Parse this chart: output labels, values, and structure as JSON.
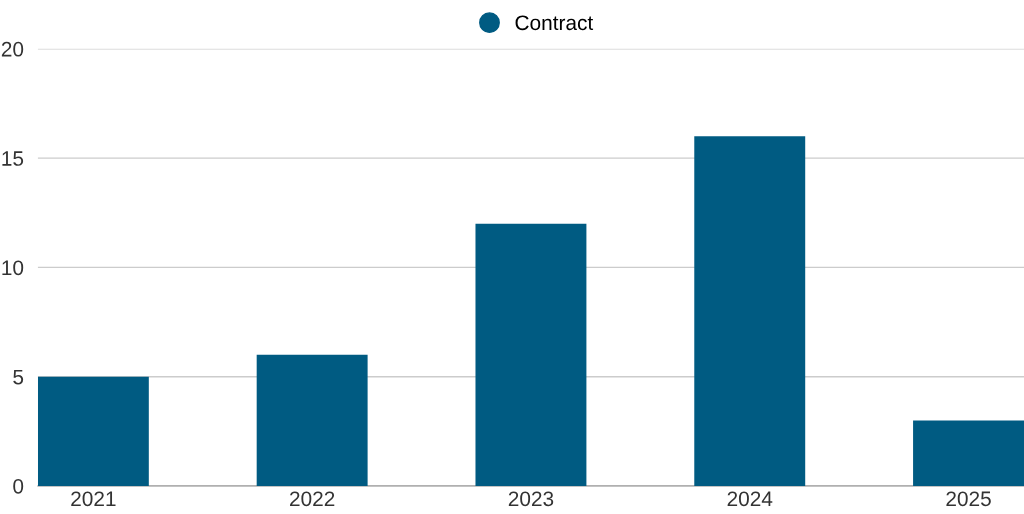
{
  "chart_data": {
    "type": "bar",
    "categories": [
      "2021",
      "2022",
      "2023",
      "2024",
      "2025"
    ],
    "series": [
      {
        "name": "Contract",
        "color": "#005b82",
        "values": [
          5,
          6,
          12,
          16,
          3
        ]
      }
    ],
    "ylim": [
      0,
      20
    ],
    "yticks": [
      0,
      5,
      10,
      15,
      20
    ],
    "grid": "y",
    "legend": "top"
  }
}
